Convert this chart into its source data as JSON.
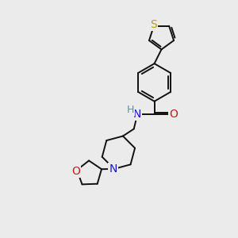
{
  "background_color": "#ebebeb",
  "fig_size": [
    3.0,
    3.0
  ],
  "dpi": 100,
  "bond_color": "#111111",
  "bond_lw": 1.4,
  "S_color": "#b8a000",
  "N_color": "#1a1acc",
  "O_color": "#cc1a1a",
  "H_color": "#4a9a9a",
  "font_size": 9,
  "atom_bg_color": "#ebebeb",
  "xlim": [
    0,
    10
  ],
  "ylim": [
    0,
    10
  ]
}
